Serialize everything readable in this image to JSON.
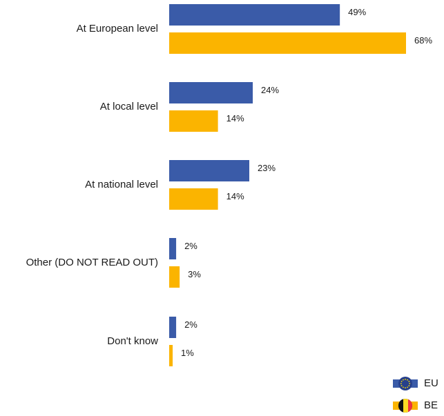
{
  "chart_data": {
    "type": "bar",
    "orientation": "horizontal",
    "categories": [
      "At European level",
      "At local level",
      "At national level",
      "Other (DO NOT READ OUT)",
      "Don't know"
    ],
    "series": [
      {
        "name": "EU",
        "values": [
          49,
          24,
          23,
          2,
          2
        ],
        "color": "#3a5ba8"
      },
      {
        "name": "BE",
        "values": [
          68,
          14,
          14,
          3,
          1
        ],
        "color": "#fbb400"
      }
    ],
    "value_suffix": "%",
    "legend_position": "bottom-right",
    "legend_icons": [
      "eu-flag-icon",
      "belgium-flag-icon"
    ],
    "grid": false,
    "xlim": [
      0,
      70
    ]
  }
}
